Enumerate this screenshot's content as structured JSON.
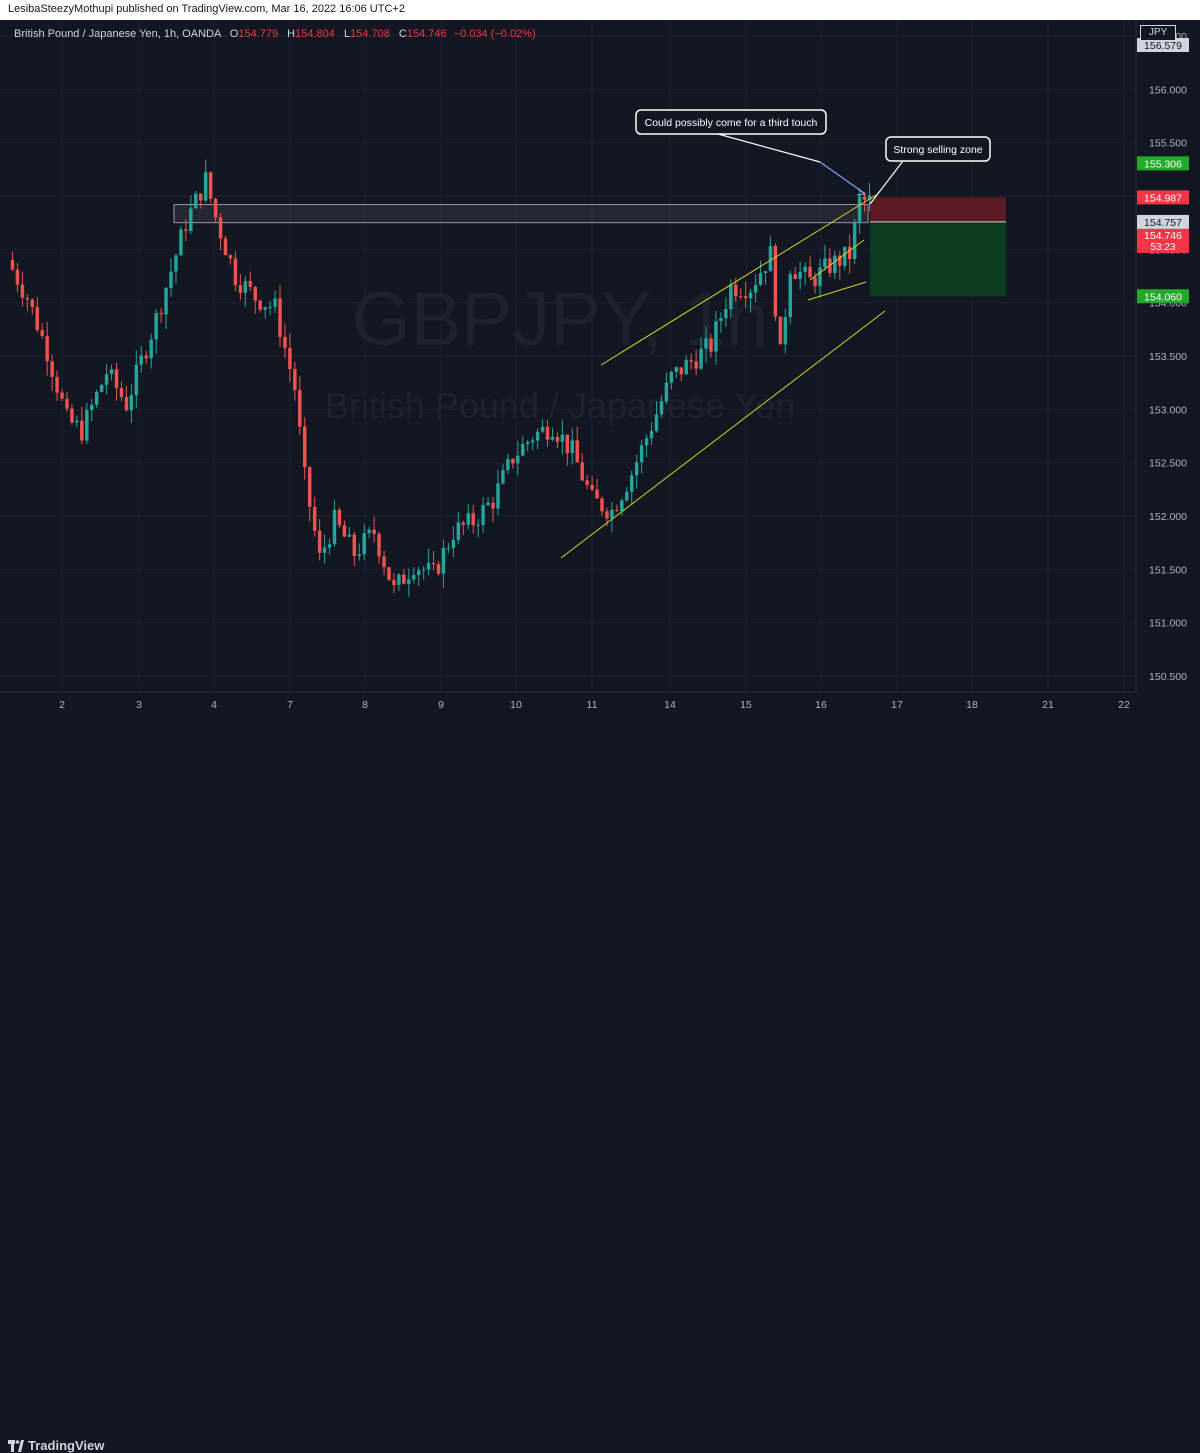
{
  "header": {
    "publish_line": "LesibaSteezyMothupi published on TradingView.com, Mar 16, 2022 16:06 UTC+2"
  },
  "legend": {
    "symbol": "British Pound / Japanese Yen, 1h, OANDA",
    "o_label": "O",
    "o_value": "154.779",
    "h_label": "H",
    "h_value": "154.804",
    "l_label": "L",
    "l_value": "154.708",
    "c_label": "C",
    "c_value": "154.746",
    "change": "−0.034 (−0.02%)"
  },
  "currency": "JPY",
  "watermark": {
    "ticker": "GBPJPY, 1h",
    "name": "British Pound / Japanese Yen"
  },
  "annotations": {
    "callout1": "Could possibly come for a third touch",
    "callout2": "Strong selling zone"
  },
  "price_labels": {
    "top": "156.579",
    "tp_top": "155.306",
    "stop": "154.987",
    "entry": "154.757",
    "last": "154.746",
    "countdown": "53:23",
    "target": "154.060"
  },
  "footer": {
    "brand": "TradingView"
  },
  "colors": {
    "up": "#26a69a",
    "down": "#ef5350",
    "trend": "#d4d422",
    "stop_zone": "#5b1a24",
    "target_zone": "#0a3d1e",
    "green_label": "#22ab2a",
    "red_label": "#f23645"
  },
  "chart_data": {
    "type": "candlestick",
    "timeframe": "1h",
    "ylim": [
      150.35,
      156.65
    ],
    "y_ticks": [
      150.5,
      151.0,
      151.5,
      152.0,
      152.5,
      153.0,
      153.5,
      154.0,
      154.5,
      155.0,
      155.5,
      156.0,
      156.5
    ],
    "y_tick_labels": [
      "150.500",
      "151.000",
      "151.500",
      "152.000",
      "152.500",
      "153.000",
      "153.500",
      "154.000",
      "154.500",
      "155.000",
      "155.500",
      "156.000",
      "156.500"
    ],
    "x_tick_labels": [
      "2",
      "3",
      "4",
      "7",
      "8",
      "9",
      "10",
      "11",
      "14",
      "15",
      "16",
      "17",
      "18",
      "21",
      "22"
    ],
    "price_path": [
      [
        0,
        154.4
      ],
      [
        4,
        154.05
      ],
      [
        8,
        153.55
      ],
      [
        12,
        152.9
      ],
      [
        15,
        152.8
      ],
      [
        20,
        153.35
      ],
      [
        24,
        153.05
      ],
      [
        30,
        153.85
      ],
      [
        36,
        154.75
      ],
      [
        40,
        155.15
      ],
      [
        42,
        154.8
      ],
      [
        46,
        154.25
      ],
      [
        50,
        154.05
      ],
      [
        54,
        153.95
      ],
      [
        58,
        153.2
      ],
      [
        60,
        152.35
      ],
      [
        63,
        151.6
      ],
      [
        66,
        151.95
      ],
      [
        70,
        151.65
      ],
      [
        74,
        151.85
      ],
      [
        78,
        151.3
      ],
      [
        82,
        151.55
      ],
      [
        86,
        151.45
      ],
      [
        90,
        151.85
      ],
      [
        94,
        151.95
      ],
      [
        98,
        152.15
      ],
      [
        102,
        152.55
      ],
      [
        106,
        152.75
      ],
      [
        110,
        152.85
      ],
      [
        114,
        152.6
      ],
      [
        118,
        152.15
      ],
      [
        122,
        152.05
      ],
      [
        126,
        152.4
      ],
      [
        130,
        152.85
      ],
      [
        134,
        153.3
      ],
      [
        138,
        153.45
      ],
      [
        142,
        153.6
      ],
      [
        146,
        154.15
      ],
      [
        150,
        154.15
      ],
      [
        154,
        154.45
      ],
      [
        156,
        153.5
      ],
      [
        158,
        154.35
      ],
      [
        162,
        154.2
      ],
      [
        166,
        154.35
      ],
      [
        170,
        154.45
      ],
      [
        172,
        154.95
      ]
    ],
    "resistance_box": [
      154.75,
      154.92
    ],
    "trade": {
      "stop": 154.987,
      "entry": 154.757,
      "target": 154.06
    }
  }
}
